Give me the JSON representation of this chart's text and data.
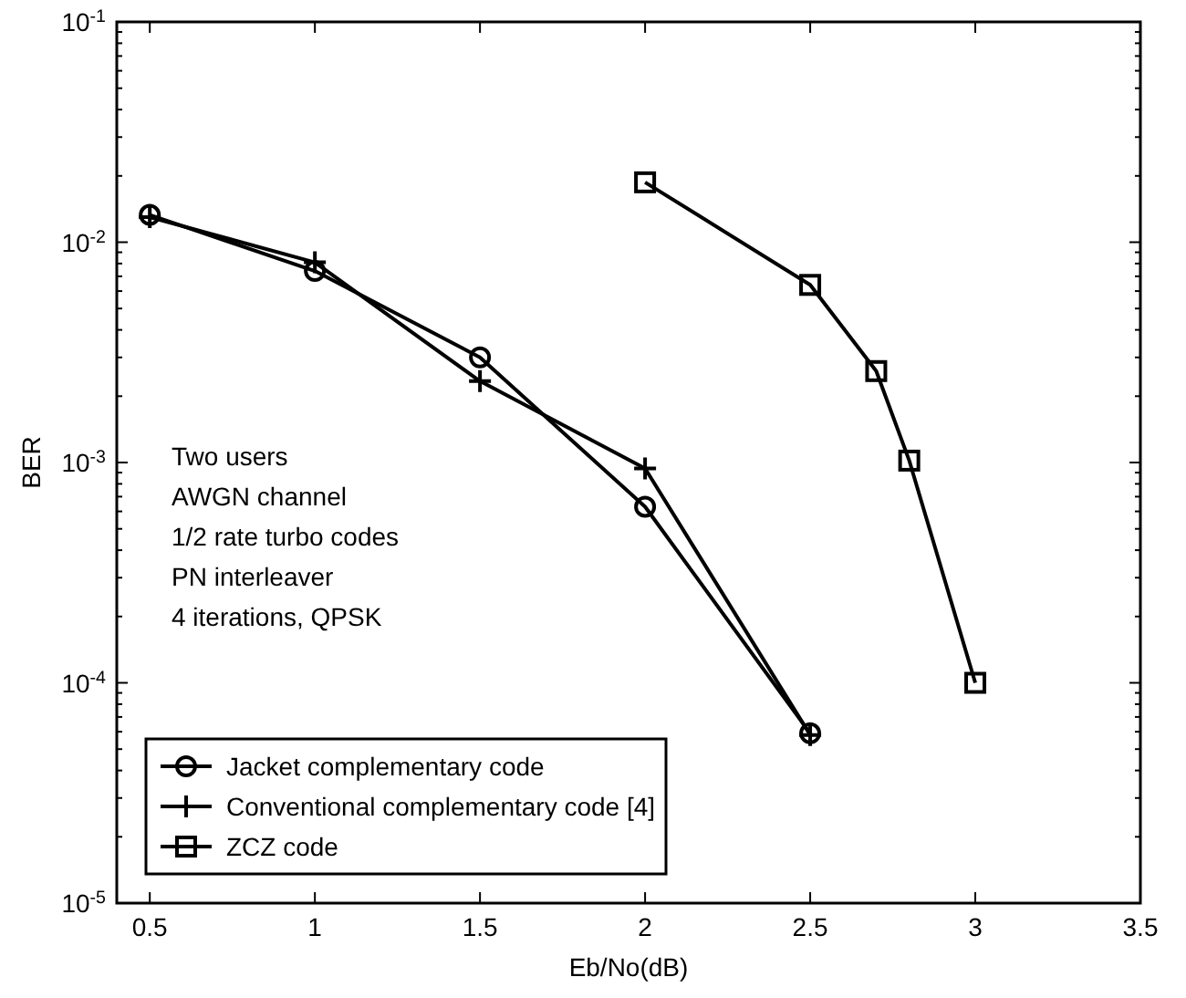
{
  "chart_data": {
    "type": "line",
    "xlabel": "Eb/No(dB)",
    "ylabel": "BER",
    "log": "y",
    "grid": false,
    "legend": "bottom left",
    "line_style": "solid",
    "xlim": [
      0.4,
      3.5
    ],
    "xticks": [
      0.5,
      1,
      1.5,
      2,
      2.5,
      3,
      3.5
    ],
    "ylim": [
      1e-05,
      0.1
    ],
    "yticks": [
      {
        "value": 1e-05,
        "label": "10$^{-5}$"
      },
      {
        "value": 2e-05,
        "label": null
      },
      {
        "value": 3e-05,
        "label": null
      },
      {
        "value": 4e-05,
        "label": null
      },
      {
        "value": 5e-05,
        "label": null
      },
      {
        "value": 6e-05,
        "label": null
      },
      {
        "value": 7e-05,
        "label": null
      },
      {
        "value": 8e-05,
        "label": null
      },
      {
        "value": 9e-05,
        "label": null
      },
      {
        "value": 0.0001,
        "label": "10$^{-4}$"
      },
      {
        "value": 0.0002,
        "label": null
      },
      {
        "value": 0.0003,
        "label": null
      },
      {
        "value": 0.0004,
        "label": null
      },
      {
        "value": 0.0005,
        "label": null
      },
      {
        "value": 0.0006,
        "label": null
      },
      {
        "value": 0.0007,
        "label": null
      },
      {
        "value": 0.0008,
        "label": null
      },
      {
        "value": 0.0009,
        "label": null
      },
      {
        "value": 0.001,
        "label": "10$^{-3}$"
      },
      {
        "value": 0.002,
        "label": null
      },
      {
        "value": 0.003,
        "label": null
      },
      {
        "value": 0.004,
        "label": null
      },
      {
        "value": 0.005,
        "label": null
      },
      {
        "value": 0.006,
        "label": null
      },
      {
        "value": 0.007,
        "label": null
      },
      {
        "value": 0.008,
        "label": null
      },
      {
        "value": 0.009,
        "label": null
      },
      {
        "value": 0.01,
        "label": "10$^{-2}$"
      },
      {
        "value": 0.02,
        "label": null
      },
      {
        "value": 0.03,
        "label": null
      },
      {
        "value": 0.04,
        "label": null
      },
      {
        "value": 0.05,
        "label": null
      },
      {
        "value": 0.06,
        "label": null
      },
      {
        "value": 0.07,
        "label": null
      },
      {
        "value": 0.08,
        "label": null
      },
      {
        "value": 0.09,
        "label": null
      },
      {
        "value": 0.1,
        "label": "10$^{-1}$"
      }
    ],
    "series": [
      {
        "name": "Jacket complementary code",
        "color": "#000000",
        "marker": "circle",
        "x": [
          0.5,
          1,
          1.5,
          2,
          2.5
        ],
        "values": [
          0.0133,
          0.0074,
          0.003,
          0.00063,
          5.9e-05
        ]
      },
      {
        "name": "Conventional complementary code [4]",
        "color": "#000000",
        "marker": "cross",
        "x": [
          0.5,
          1,
          1.5,
          2,
          2.5
        ],
        "values": [
          0.013,
          0.0081,
          0.00234,
          0.00094,
          5.8e-05
        ]
      },
      {
        "name": "ZCZ code",
        "color": "#000000",
        "marker": "square",
        "x": [
          2,
          2.5,
          2.7,
          2.8,
          3
        ],
        "values": [
          0.0187,
          0.0064,
          0.0026,
          0.00102,
          0.0001
        ]
      }
    ],
    "annotations": [
      "Two users",
      "AWGN channel",
      "1/2 rate turbo codes",
      "PN interleaver",
      "4 iterations, QPSK"
    ]
  }
}
